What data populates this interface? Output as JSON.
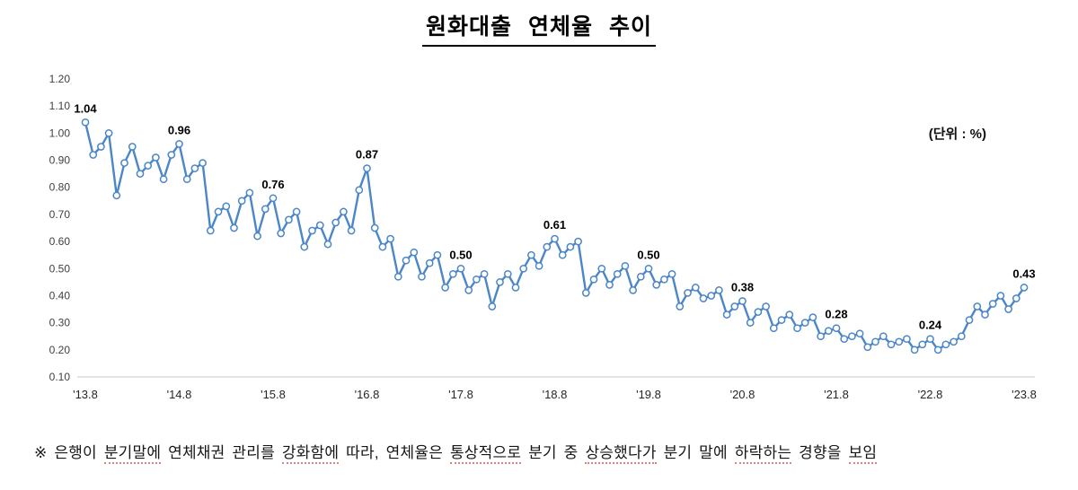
{
  "page": {
    "title": "원화대출 연체율 추이",
    "unit_label": "(단위 : %)"
  },
  "chart_data": {
    "type": "line",
    "title": "원화대출 연체율 추이",
    "unit": "(단위 : %)",
    "series_name": "원화대출 연체율",
    "ylim": [
      0.1,
      1.2
    ],
    "ytick_step": 0.1,
    "grid": false,
    "legend": "none",
    "line_color": "#4a86c8",
    "marker": "circle-open-white",
    "x": [
      "2013-08",
      "2013-09",
      "2013-10",
      "2013-11",
      "2013-12",
      "2014-01",
      "2014-02",
      "2014-03",
      "2014-04",
      "2014-05",
      "2014-06",
      "2014-07",
      "2014-08",
      "2014-09",
      "2014-10",
      "2014-11",
      "2014-12",
      "2015-01",
      "2015-02",
      "2015-03",
      "2015-04",
      "2015-05",
      "2015-06",
      "2015-07",
      "2015-08",
      "2015-09",
      "2015-10",
      "2015-11",
      "2015-12",
      "2016-01",
      "2016-02",
      "2016-03",
      "2016-04",
      "2016-05",
      "2016-06",
      "2016-07",
      "2016-08",
      "2016-09",
      "2016-10",
      "2016-11",
      "2016-12",
      "2017-01",
      "2017-02",
      "2017-03",
      "2017-04",
      "2017-05",
      "2017-06",
      "2017-07",
      "2017-08",
      "2017-09",
      "2017-10",
      "2017-11",
      "2017-12",
      "2018-01",
      "2018-02",
      "2018-03",
      "2018-04",
      "2018-05",
      "2018-06",
      "2018-07",
      "2018-08",
      "2018-09",
      "2018-10",
      "2018-11",
      "2018-12",
      "2019-01",
      "2019-02",
      "2019-03",
      "2019-04",
      "2019-05",
      "2019-06",
      "2019-07",
      "2019-08",
      "2019-09",
      "2019-10",
      "2019-11",
      "2019-12",
      "2020-01",
      "2020-02",
      "2020-03",
      "2020-04",
      "2020-05",
      "2020-06",
      "2020-07",
      "2020-08",
      "2020-09",
      "2020-10",
      "2020-11",
      "2020-12",
      "2021-01",
      "2021-02",
      "2021-03",
      "2021-04",
      "2021-05",
      "2021-06",
      "2021-07",
      "2021-08",
      "2021-09",
      "2021-10",
      "2021-11",
      "2021-12",
      "2022-01",
      "2022-02",
      "2022-03",
      "2022-04",
      "2022-05",
      "2022-06",
      "2022-07",
      "2022-08",
      "2022-09",
      "2022-10",
      "2022-11",
      "2022-12",
      "2023-01",
      "2023-02",
      "2023-03",
      "2023-04",
      "2023-05",
      "2023-06",
      "2023-07",
      "2023-08"
    ],
    "values": [
      1.04,
      0.92,
      0.95,
      1.0,
      0.77,
      0.89,
      0.95,
      0.85,
      0.88,
      0.91,
      0.83,
      0.92,
      0.96,
      0.83,
      0.87,
      0.89,
      0.64,
      0.71,
      0.73,
      0.65,
      0.75,
      0.78,
      0.62,
      0.72,
      0.76,
      0.63,
      0.68,
      0.71,
      0.58,
      0.64,
      0.66,
      0.59,
      0.67,
      0.71,
      0.64,
      0.79,
      0.87,
      0.65,
      0.58,
      0.61,
      0.47,
      0.53,
      0.56,
      0.47,
      0.52,
      0.55,
      0.43,
      0.48,
      0.5,
      0.42,
      0.46,
      0.48,
      0.36,
      0.45,
      0.48,
      0.43,
      0.5,
      0.55,
      0.51,
      0.58,
      0.61,
      0.55,
      0.58,
      0.6,
      0.41,
      0.46,
      0.5,
      0.44,
      0.48,
      0.51,
      0.42,
      0.47,
      0.5,
      0.44,
      0.46,
      0.48,
      0.36,
      0.41,
      0.43,
      0.39,
      0.4,
      0.42,
      0.33,
      0.36,
      0.38,
      0.3,
      0.34,
      0.36,
      0.28,
      0.31,
      0.33,
      0.28,
      0.3,
      0.32,
      0.25,
      0.27,
      0.28,
      0.24,
      0.25,
      0.26,
      0.21,
      0.23,
      0.25,
      0.22,
      0.23,
      0.24,
      0.2,
      0.22,
      0.24,
      0.2,
      0.22,
      0.23,
      0.25,
      0.31,
      0.36,
      0.33,
      0.37,
      0.4,
      0.35,
      0.39,
      0.43
    ],
    "xticks": [
      {
        "index": 0,
        "label": "'13.8"
      },
      {
        "index": 12,
        "label": "'14.8"
      },
      {
        "index": 24,
        "label": "'15.8"
      },
      {
        "index": 36,
        "label": "'16.8"
      },
      {
        "index": 48,
        "label": "'17.8"
      },
      {
        "index": 60,
        "label": "'18.8"
      },
      {
        "index": 72,
        "label": "'19.8"
      },
      {
        "index": 84,
        "label": "'20.8"
      },
      {
        "index": 96,
        "label": "'21.8"
      },
      {
        "index": 108,
        "label": "'22.8"
      },
      {
        "index": 120,
        "label": "'23.8"
      }
    ],
    "point_labels": [
      {
        "index": 0,
        "text": "1.04"
      },
      {
        "index": 12,
        "text": "0.96"
      },
      {
        "index": 24,
        "text": "0.76"
      },
      {
        "index": 36,
        "text": "0.87"
      },
      {
        "index": 48,
        "text": "0.50"
      },
      {
        "index": 60,
        "text": "0.61"
      },
      {
        "index": 72,
        "text": "0.50"
      },
      {
        "index": 84,
        "text": "0.38"
      },
      {
        "index": 96,
        "text": "0.28"
      },
      {
        "index": 108,
        "text": "0.24"
      },
      {
        "index": 120,
        "text": "0.43"
      }
    ]
  },
  "footnote": {
    "segments": [
      {
        "text": "※ 은행이 ",
        "u": false
      },
      {
        "text": "분기말에",
        "u": true
      },
      {
        "text": " 연체채권 관리를 ",
        "u": false
      },
      {
        "text": "강화함에",
        "u": true
      },
      {
        "text": " 따라, 연체율은 ",
        "u": false
      },
      {
        "text": "통상적으로",
        "u": true
      },
      {
        "text": " 분기 중 ",
        "u": false
      },
      {
        "text": "상승했다가",
        "u": true
      },
      {
        "text": " 분기 말에 ",
        "u": false
      },
      {
        "text": "하락하는",
        "u": true
      },
      {
        "text": " 경향을 ",
        "u": false
      },
      {
        "text": "보임",
        "u": true
      }
    ]
  }
}
